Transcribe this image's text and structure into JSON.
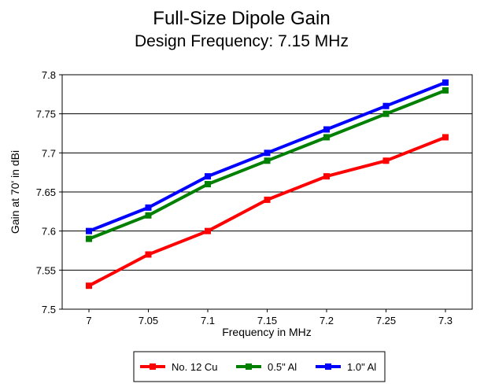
{
  "chart_data": {
    "type": "line",
    "title": "Full-Size Dipole Gain",
    "subtitle": "Design Frequency:  7.15 MHz",
    "xlabel": "Frequency in MHz",
    "ylabel": "Gain at 70' in dBi",
    "x": [
      7.0,
      7.05,
      7.1,
      7.15,
      7.2,
      7.25,
      7.3
    ],
    "x_tick_labels": [
      "7",
      "7.05",
      "7.1",
      "7.15",
      "7.2",
      "7.25",
      "7.3"
    ],
    "ylim": [
      7.5,
      7.8
    ],
    "y_ticks": [
      7.5,
      7.55,
      7.6,
      7.65,
      7.7,
      7.75,
      7.8
    ],
    "y_tick_labels": [
      "7.5",
      "7.55",
      "7.6",
      "7.65",
      "7.7",
      "7.75",
      "7.8"
    ],
    "grid": "horizontal",
    "legend_position": "bottom",
    "series": [
      {
        "name": "No. 12 Cu",
        "color": "#ff0000",
        "values": [
          7.53,
          7.57,
          7.6,
          7.64,
          7.67,
          7.69,
          7.72
        ]
      },
      {
        "name": "0.5\" Al",
        "color": "#008000",
        "values": [
          7.59,
          7.62,
          7.66,
          7.69,
          7.72,
          7.75,
          7.78
        ]
      },
      {
        "name": "1.0\" Al",
        "color": "#0000ff",
        "values": [
          7.6,
          7.63,
          7.67,
          7.7,
          7.73,
          7.76,
          7.79
        ]
      }
    ]
  }
}
